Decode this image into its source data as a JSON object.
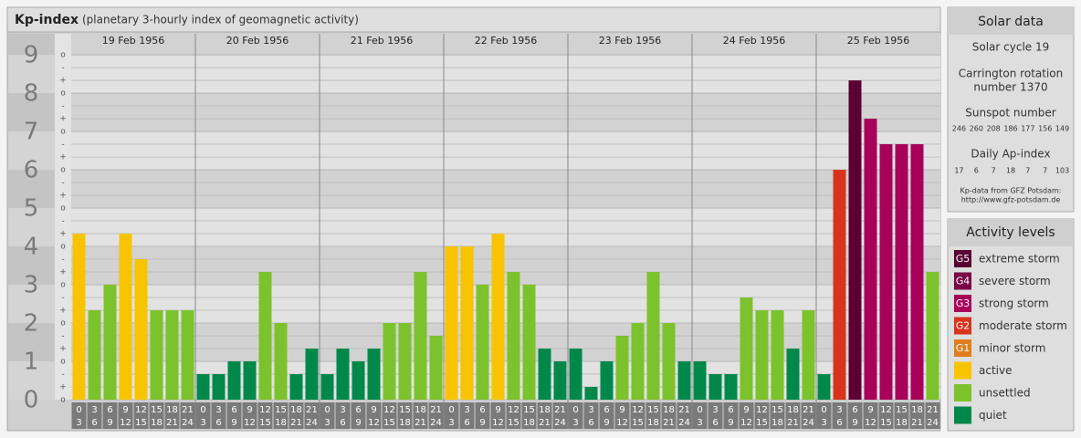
{
  "chart_data": {
    "type": "bar",
    "title": "Kp-index",
    "subtitle": "(planetary 3-hourly index of geomagnetic activity)",
    "days": [
      "19 Feb 1956",
      "20 Feb 1956",
      "21 Feb 1956",
      "22 Feb 1956",
      "23 Feb 1956",
      "24 Feb 1956",
      "25 Feb 1956"
    ],
    "hours": [
      [
        "0",
        "3"
      ],
      [
        "3",
        "6"
      ],
      [
        "6",
        "9"
      ],
      [
        "9",
        "12"
      ],
      [
        "12",
        "15"
      ],
      [
        "15",
        "18"
      ],
      [
        "18",
        "21"
      ],
      [
        "21",
        "24"
      ]
    ],
    "values": [
      [
        4.333,
        2.333,
        3,
        4.333,
        3.667,
        2.333,
        2.333,
        2.333
      ],
      [
        0.667,
        0.667,
        1,
        1,
        3.333,
        2,
        0.667,
        1.333
      ],
      [
        0.667,
        1.333,
        1,
        1.333,
        2,
        2,
        3.333,
        1.667
      ],
      [
        4,
        4,
        3,
        4.333,
        3.333,
        3,
        1.333,
        1
      ],
      [
        1.333,
        0.333,
        1,
        1.667,
        2,
        3.333,
        2,
        1
      ],
      [
        1,
        0.667,
        0.667,
        2.667,
        2.333,
        2.333,
        1.333,
        2.333
      ],
      [
        0.667,
        6,
        8.333,
        7.333,
        6.667,
        6.667,
        6.667,
        3.333
      ]
    ],
    "colors": [
      [
        "#f8c400",
        "#7cc22c",
        "#7cc22c",
        "#f8c400",
        "#f8c400",
        "#7cc22c",
        "#7cc22c",
        "#7cc22c"
      ],
      [
        "#00884a",
        "#00884a",
        "#00884a",
        "#00884a",
        "#7cc22c",
        "#7cc22c",
        "#00884a",
        "#00884a"
      ],
      [
        "#00884a",
        "#00884a",
        "#00884a",
        "#00884a",
        "#7cc22c",
        "#7cc22c",
        "#7cc22c",
        "#7cc22c"
      ],
      [
        "#f8c400",
        "#f8c400",
        "#7cc22c",
        "#f8c400",
        "#7cc22c",
        "#7cc22c",
        "#00884a",
        "#00884a"
      ],
      [
        "#00884a",
        "#00884a",
        "#00884a",
        "#7cc22c",
        "#7cc22c",
        "#7cc22c",
        "#7cc22c",
        "#00884a"
      ],
      [
        "#00884a",
        "#00884a",
        "#00884a",
        "#7cc22c",
        "#7cc22c",
        "#7cc22c",
        "#00884a",
        "#7cc22c"
      ],
      [
        "#00884a",
        "#d8341c",
        "#5a0032",
        "#a8005a",
        "#a8005a",
        "#a8005a",
        "#a8005a",
        "#7cc22c"
      ]
    ],
    "ylim": [
      0,
      9.55
    ],
    "yticks": [
      0,
      1,
      2,
      3,
      4,
      5,
      6,
      7,
      8,
      9
    ],
    "minor_ticks": [
      {
        "value": 0,
        "label": "o"
      },
      {
        "value": 0.333,
        "label": "+"
      },
      {
        "value": 0.667,
        "label": "-"
      },
      {
        "value": 1,
        "label": "o"
      },
      {
        "value": 1.333,
        "label": "+"
      },
      {
        "value": 1.667,
        "label": "-"
      },
      {
        "value": 2,
        "label": "o"
      },
      {
        "value": 2.333,
        "label": "+"
      },
      {
        "value": 2.667,
        "label": "-"
      },
      {
        "value": 3,
        "label": "o"
      },
      {
        "value": 3.333,
        "label": "+"
      },
      {
        "value": 3.667,
        "label": "-"
      },
      {
        "value": 4,
        "label": "o"
      },
      {
        "value": 4.333,
        "label": "+"
      },
      {
        "value": 4.667,
        "label": "-"
      },
      {
        "value": 5,
        "label": "o"
      },
      {
        "value": 5.333,
        "label": "+"
      },
      {
        "value": 5.667,
        "label": "-"
      },
      {
        "value": 6,
        "label": "o"
      },
      {
        "value": 6.333,
        "label": "+"
      },
      {
        "value": 6.667,
        "label": "-"
      },
      {
        "value": 7,
        "label": "o"
      },
      {
        "value": 7.333,
        "label": "+"
      },
      {
        "value": 7.667,
        "label": "-"
      },
      {
        "value": 8,
        "label": "o"
      },
      {
        "value": 8.333,
        "label": "+"
      },
      {
        "value": 8.667,
        "label": "-"
      },
      {
        "value": 9,
        "label": "o"
      }
    ],
    "grid": true
  },
  "solar": {
    "title": "Solar data",
    "cycle": "Solar cycle 19",
    "carrington": [
      "Carrington rotation",
      "number 1370"
    ],
    "sunspot_title": "Sunspot number",
    "sunspot": [
      246,
      260,
      208,
      186,
      177,
      156,
      149
    ],
    "ap_title": "Daily Ap-index",
    "ap": [
      17,
      6,
      7,
      18,
      7,
      7,
      103
    ],
    "source": [
      "Kp-data from GFZ Potsdam:",
      "http://www.gfz-potsdam.de"
    ]
  },
  "legend": {
    "title": "Activity levels",
    "items": [
      {
        "code": "G5",
        "label": "extreme storm",
        "color": "#5a0032"
      },
      {
        "code": "G4",
        "label": "severe storm",
        "color": "#7a0046"
      },
      {
        "code": "G3",
        "label": "strong storm",
        "color": "#a8005a"
      },
      {
        "code": "G2",
        "label": "moderate storm",
        "color": "#d8341c"
      },
      {
        "code": "G1",
        "label": "minor storm",
        "color": "#e07e1e"
      },
      {
        "label": "active",
        "color": "#f8c400"
      },
      {
        "label": "unsettled",
        "color": "#7cc22c"
      },
      {
        "label": "quiet",
        "color": "#00884a"
      }
    ]
  }
}
